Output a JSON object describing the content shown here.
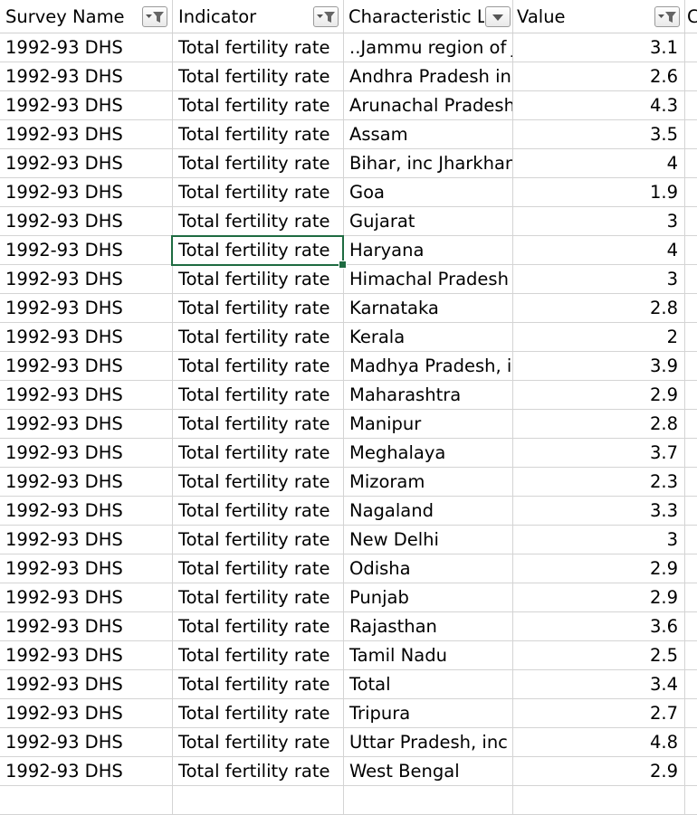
{
  "headers": {
    "survey_name": "Survey Name",
    "indicator": "Indicator",
    "characteristic": "Characteristic L",
    "value": "Value",
    "extra": "C"
  },
  "icons": {
    "filter_active": "filter-funnel-icon",
    "dropdown": "dropdown-arrow-icon"
  },
  "colors": {
    "selection_border": "#1e6b41",
    "gridline": "#d4d4d4"
  },
  "selected_cell": {
    "row": 8,
    "column": "indicator"
  },
  "rows": [
    {
      "survey": "1992-93 DHS",
      "indicator": "Total fertility rate",
      "characteristic": "..Jammu region of J&K",
      "value": "3.1"
    },
    {
      "survey": "1992-93 DHS",
      "indicator": "Total fertility rate",
      "characteristic": "Andhra Pradesh inc Telangana",
      "value": "2.6"
    },
    {
      "survey": "1992-93 DHS",
      "indicator": "Total fertility rate",
      "characteristic": "Arunachal Pradesh",
      "value": "4.3"
    },
    {
      "survey": "1992-93 DHS",
      "indicator": "Total fertility rate",
      "characteristic": "Assam",
      "value": "3.5"
    },
    {
      "survey": "1992-93 DHS",
      "indicator": "Total fertility rate",
      "characteristic": "Bihar, inc Jharkhand",
      "value": "4"
    },
    {
      "survey": "1992-93 DHS",
      "indicator": "Total fertility rate",
      "characteristic": "Goa",
      "value": "1.9"
    },
    {
      "survey": "1992-93 DHS",
      "indicator": "Total fertility rate",
      "characteristic": "Gujarat",
      "value": "3"
    },
    {
      "survey": "1992-93 DHS",
      "indicator": "Total fertility rate",
      "characteristic": "Haryana",
      "value": "4"
    },
    {
      "survey": "1992-93 DHS",
      "indicator": "Total fertility rate",
      "characteristic": "Himachal Pradesh",
      "value": "3"
    },
    {
      "survey": "1992-93 DHS",
      "indicator": "Total fertility rate",
      "characteristic": "Karnataka",
      "value": "2.8"
    },
    {
      "survey": "1992-93 DHS",
      "indicator": "Total fertility rate",
      "characteristic": "Kerala",
      "value": "2"
    },
    {
      "survey": "1992-93 DHS",
      "indicator": "Total fertility rate",
      "characteristic": "Madhya Pradesh, inc Chhattisgarh",
      "value": "3.9"
    },
    {
      "survey": "1992-93 DHS",
      "indicator": "Total fertility rate",
      "characteristic": "Maharashtra",
      "value": "2.9"
    },
    {
      "survey": "1992-93 DHS",
      "indicator": "Total fertility rate",
      "characteristic": "Manipur",
      "value": "2.8"
    },
    {
      "survey": "1992-93 DHS",
      "indicator": "Total fertility rate",
      "characteristic": "Meghalaya",
      "value": "3.7"
    },
    {
      "survey": "1992-93 DHS",
      "indicator": "Total fertility rate",
      "characteristic": "Mizoram",
      "value": "2.3"
    },
    {
      "survey": "1992-93 DHS",
      "indicator": "Total fertility rate",
      "characteristic": "Nagaland",
      "value": "3.3"
    },
    {
      "survey": "1992-93 DHS",
      "indicator": "Total fertility rate",
      "characteristic": "New Delhi",
      "value": "3"
    },
    {
      "survey": "1992-93 DHS",
      "indicator": "Total fertility rate",
      "characteristic": "Odisha",
      "value": "2.9"
    },
    {
      "survey": "1992-93 DHS",
      "indicator": "Total fertility rate",
      "characteristic": "Punjab",
      "value": "2.9"
    },
    {
      "survey": "1992-93 DHS",
      "indicator": "Total fertility rate",
      "characteristic": "Rajasthan",
      "value": "3.6"
    },
    {
      "survey": "1992-93 DHS",
      "indicator": "Total fertility rate",
      "characteristic": "Tamil Nadu",
      "value": "2.5"
    },
    {
      "survey": "1992-93 DHS",
      "indicator": "Total fertility rate",
      "characteristic": "Total",
      "value": "3.4"
    },
    {
      "survey": "1992-93 DHS",
      "indicator": "Total fertility rate",
      "characteristic": "Tripura",
      "value": "2.7"
    },
    {
      "survey": "1992-93 DHS",
      "indicator": "Total fertility rate",
      "characteristic": "Uttar Pradesh, inc Uttarakhand",
      "value": "4.8"
    },
    {
      "survey": "1992-93 DHS",
      "indicator": "Total fertility rate",
      "characteristic": "West Bengal",
      "value": "2.9"
    }
  ]
}
